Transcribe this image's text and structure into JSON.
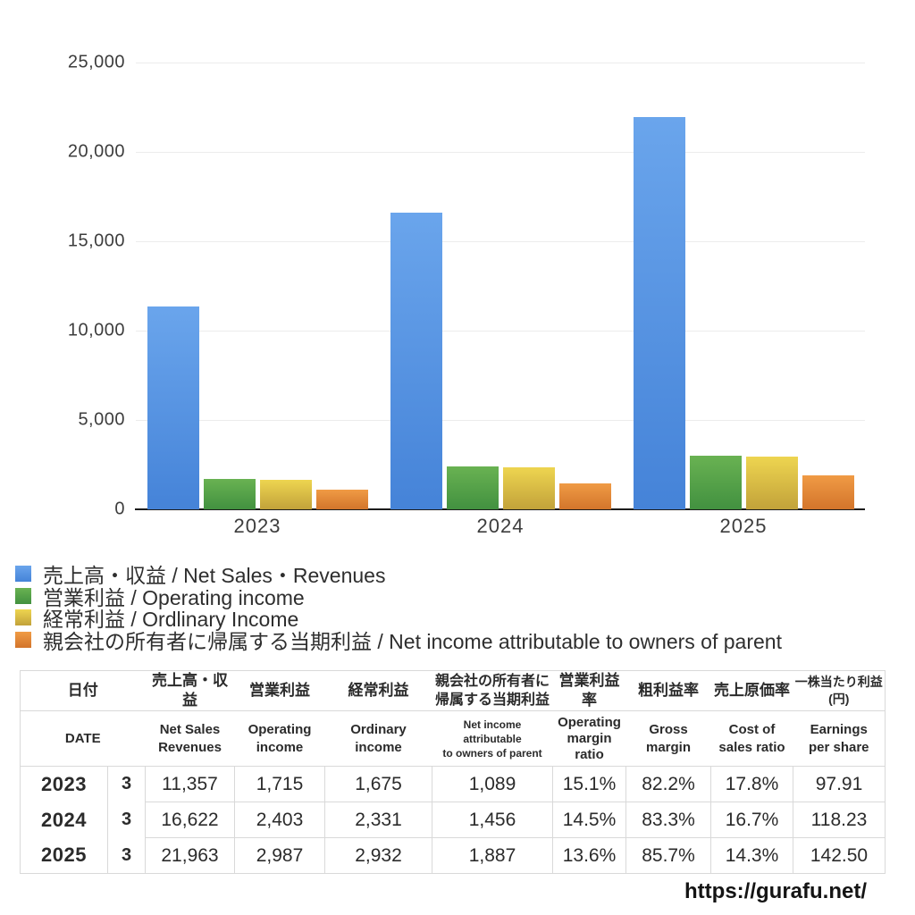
{
  "chart_data": {
    "type": "bar",
    "title": "",
    "categories": [
      "2023",
      "2024",
      "2025"
    ],
    "series": [
      {
        "name_jp": "売上高・収益",
        "name_en": "Net Sales・Revenues",
        "legend": "売上高・収益 / Net Sales・Revenues",
        "color_top": "#6aa5ec",
        "color_bottom": "#4583d8",
        "values": [
          11357,
          16622,
          21963
        ]
      },
      {
        "name_jp": "営業利益",
        "name_en": "Operating income",
        "legend": "営業利益 / Operating income",
        "color_top": "#69b252",
        "color_bottom": "#429140",
        "values": [
          1715,
          2403,
          2987
        ]
      },
      {
        "name_jp": "経常利益",
        "name_en": "Ordlinary Income",
        "legend": "経常利益 / Ordlinary Income",
        "color_top": "#eed550",
        "color_bottom": "#c2a23a",
        "values": [
          1675,
          2331,
          2932
        ]
      },
      {
        "name_jp": "親会社の所有者に帰属する当期利益",
        "name_en": "Net income attributable to owners of parent",
        "legend": "親会社の所有者に帰属する当期利益 / Net income attributable to owners of parent",
        "color_top": "#f09b45",
        "color_bottom": "#d3752b",
        "values": [
          1089,
          1456,
          1887
        ]
      }
    ],
    "ylim": [
      0,
      25000
    ],
    "y_ticks": [
      0,
      5000,
      10000,
      15000,
      20000,
      25000
    ],
    "y_tick_labels": [
      "0",
      "5,000",
      "10,000",
      "15,000",
      "20,000",
      "25,000"
    ],
    "grid": true,
    "legend_position": "bottom-left"
  },
  "table": {
    "columns": [
      {
        "jp": "日付",
        "en": "DATE"
      },
      {
        "jp": "売上高・収益",
        "en": "Net Sales\nRevenues"
      },
      {
        "jp": "営業利益",
        "en": "Operating\nincome"
      },
      {
        "jp": "経常利益",
        "en": "Ordinary\nincome"
      },
      {
        "jp": "親会社の所有者に\n帰属する当期利益",
        "en": "Net income attributable\nto owners of parent"
      },
      {
        "jp": "営業利益率",
        "en": "Operating\nmargin\nratio"
      },
      {
        "jp": "粗利益率",
        "en": "Gross\nmargin"
      },
      {
        "jp": "売上原価率",
        "en": "Cost of\nsales ratio"
      },
      {
        "jp": "一株当たり利益\n(円)",
        "en": "Earnings\nper share"
      }
    ],
    "rows": [
      {
        "year": "2023",
        "month": "3",
        "values": [
          "11,357",
          "1,715",
          "1,675",
          "1,089",
          "15.1%",
          "82.2%",
          "17.8%",
          "97.91"
        ]
      },
      {
        "year": "2024",
        "month": "3",
        "values": [
          "16,622",
          "2,403",
          "2,331",
          "1,456",
          "14.5%",
          "83.3%",
          "16.7%",
          "118.23"
        ]
      },
      {
        "year": "2025",
        "month": "3",
        "values": [
          "21,963",
          "2,987",
          "2,932",
          "1,887",
          "13.6%",
          "85.7%",
          "14.3%",
          "142.50"
        ]
      }
    ]
  },
  "footer": {
    "url": "https://gurafu.net/"
  }
}
